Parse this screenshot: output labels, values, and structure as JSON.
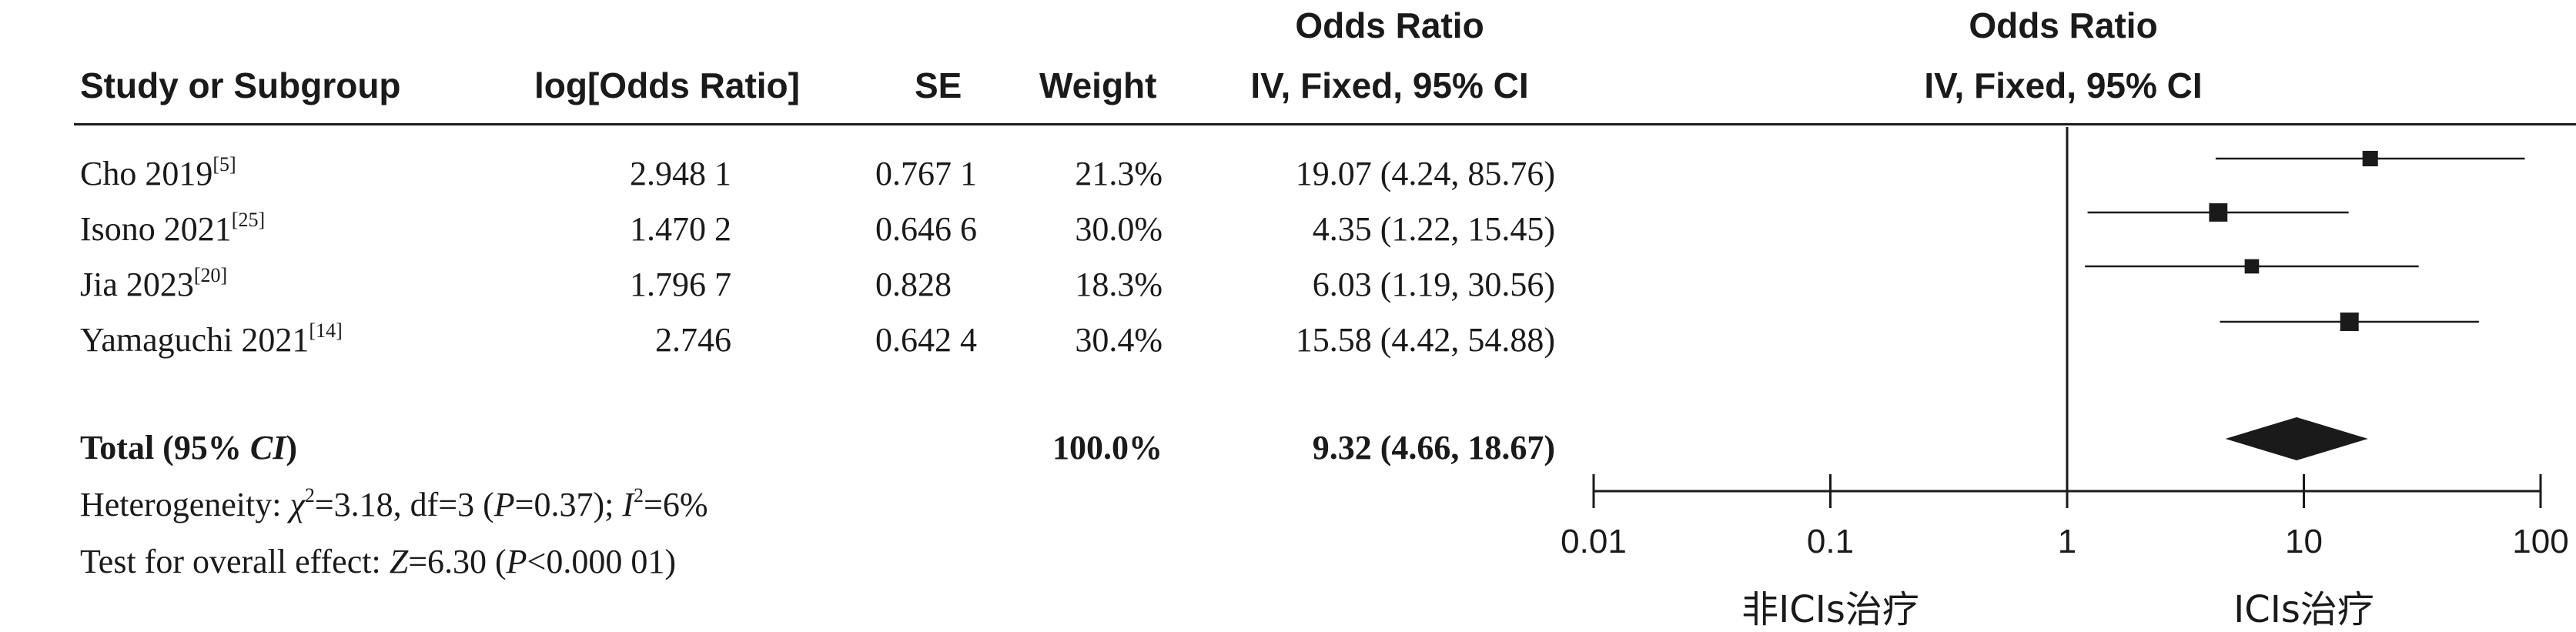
{
  "header": {
    "study": "Study or Subgroup",
    "logor": "log[Odds Ratio]",
    "se": "SE",
    "weight": "Weight",
    "or_title_left": "Odds Ratio",
    "or_sub_left": "IV, Fixed, 95% CI",
    "or_title_right": "Odds Ratio",
    "or_sub_right": "IV, Fixed, 95% CI"
  },
  "studies": [
    {
      "name": "Cho 2019",
      "ref": "[5]",
      "logor": "2.948 1",
      "se": "0.767 1",
      "weight": "21.3%",
      "ci_text": "19.07 (4.24, 85.76)"
    },
    {
      "name": "Isono 2021",
      "ref": "[25]",
      "logor": "1.470 2",
      "se": "0.646 6",
      "weight": "30.0%",
      "ci_text": "4.35 (1.22, 15.45)"
    },
    {
      "name": "Jia 2023",
      "ref": "[20]",
      "logor": "1.796 7",
      "se": "0.828",
      "weight": "18.3%",
      "ci_text": "6.03 (1.19, 30.56)"
    },
    {
      "name": "Yamaguchi 2021",
      "ref": "[14]",
      "logor": "2.746",
      "se": "0.642 4",
      "weight": "30.4%",
      "ci_text": "15.58 (4.42, 54.88)"
    }
  ],
  "total": {
    "label_pre": "Total (95% ",
    "label_ci": "CI",
    "label_post": ")",
    "weight": "100.0%",
    "ci_text": "9.32 (4.66, 18.67)"
  },
  "heterogeneity": {
    "prefix": "Heterogeneity: ",
    "chi": "χ",
    "chi_exp": "2",
    "chi_val": "=3.18, df=3 (",
    "p": "P",
    "p_val": "=0.37); ",
    "i": "I",
    "i_exp": "2",
    "i_val": "=6%"
  },
  "overall": {
    "prefix": "Test for overall effect: ",
    "z": "Z",
    "z_val": "=6.30 (",
    "p": "P",
    "p_val": "<0.000 01)"
  },
  "chart_data": {
    "type": "forest",
    "x_scale": "log",
    "xlim": [
      0.01,
      100
    ],
    "x_ticks": [
      "0.01",
      "0.1",
      "1",
      "10",
      "100"
    ],
    "favours_left": "非ICIs治疗",
    "favours_right": "ICIs治疗",
    "series": [
      {
        "name": "Cho 2019",
        "or": 19.07,
        "lower": 4.24,
        "upper": 85.76,
        "weight": 21.3
      },
      {
        "name": "Isono 2021",
        "or": 4.35,
        "lower": 1.22,
        "upper": 15.45,
        "weight": 30.0
      },
      {
        "name": "Jia 2023",
        "or": 6.03,
        "lower": 1.19,
        "upper": 30.56,
        "weight": 18.3
      },
      {
        "name": "Yamaguchi 2021",
        "or": 15.58,
        "lower": 4.42,
        "upper": 54.88,
        "weight": 30.4
      }
    ],
    "pooled": {
      "or": 9.32,
      "lower": 4.66,
      "upper": 18.67
    },
    "reference_line": 1,
    "color": "#1a1a1a"
  }
}
